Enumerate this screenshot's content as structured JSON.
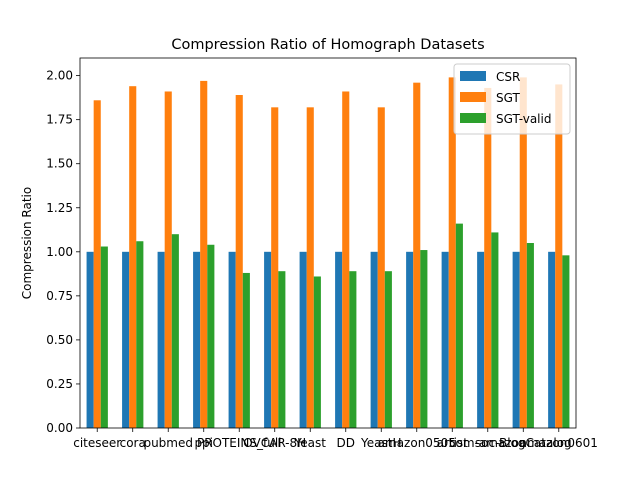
{
  "chart_data": {
    "type": "bar",
    "title": "Compression Ratio of Homograph Datasets",
    "xlabel": "",
    "ylabel": "Compression Ratio",
    "ylim": [
      0,
      2.1
    ],
    "yticks": [
      "0.00",
      "0.25",
      "0.50",
      "0.75",
      "1.00",
      "1.25",
      "1.50",
      "1.75",
      "2.00"
    ],
    "categories": [
      "citeseer",
      "cora",
      "pubmed",
      "ppi",
      "PROTEINS_full",
      "OVCAR-8H",
      "Yeast",
      "DD",
      "YeastH",
      "amazon0505",
      "artist",
      "com-amazon",
      "soc-BlogCatalog",
      "amazon0601"
    ],
    "series": [
      {
        "name": "CSR",
        "color": "#1f77b4",
        "values": [
          1,
          1,
          1,
          1,
          1,
          1,
          1,
          1,
          1,
          1,
          1,
          1,
          1,
          1
        ]
      },
      {
        "name": "SGT",
        "color": "#ff7f0e",
        "values": [
          1.86,
          1.94,
          1.91,
          1.97,
          1.89,
          1.82,
          1.82,
          1.91,
          1.82,
          1.96,
          1.99,
          1.93,
          1.99,
          1.95
        ]
      },
      {
        "name": "SGT-valid",
        "color": "#2ca02c",
        "values": [
          1.03,
          1.06,
          1.1,
          1.04,
          0.88,
          0.89,
          0.86,
          0.89,
          0.89,
          1.01,
          1.16,
          1.11,
          1.05,
          0.98
        ]
      }
    ],
    "grid": false,
    "legend_position": "top-right"
  }
}
